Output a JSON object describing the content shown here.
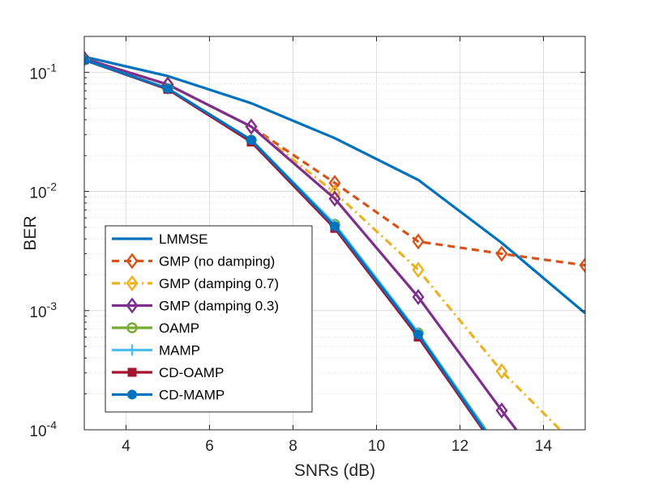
{
  "chart_data": {
    "type": "line",
    "title": "",
    "xlabel": "SNRs (dB)",
    "ylabel": "BER",
    "xlim": [
      3,
      15
    ],
    "ylim": [
      0.0001,
      0.2
    ],
    "yscale": "log",
    "grid": true,
    "legend_position": "bottom-left",
    "x_ticks": [
      4,
      6,
      8,
      10,
      12,
      14
    ],
    "y_ticks": [
      {
        "value": 0.0001,
        "base": "10",
        "exp": "-4"
      },
      {
        "value": 0.001,
        "base": "10",
        "exp": "-3"
      },
      {
        "value": 0.01,
        "base": "10",
        "exp": "-2"
      },
      {
        "value": 0.1,
        "base": "10",
        "exp": "-1"
      }
    ],
    "series": [
      {
        "name": "LMMSE",
        "color": "#0072BD",
        "dash": "solid",
        "marker": "none",
        "x": [
          3,
          5,
          7,
          9,
          11,
          13,
          15
        ],
        "y": [
          0.135,
          0.093,
          0.055,
          0.028,
          0.0125,
          0.0037,
          0.00095
        ]
      },
      {
        "name": "GMP (no damping)",
        "color": "#D95319",
        "dash": "dashed",
        "marker": "diamond",
        "x": [
          3,
          5,
          7,
          9,
          11,
          13,
          15
        ],
        "y": [
          0.13,
          0.079,
          0.035,
          0.0118,
          0.0038,
          0.003,
          0.0024
        ]
      },
      {
        "name": "GMP (damping 0.7)",
        "color": "#EDB120",
        "dash": "dashdot",
        "marker": "diamond",
        "x": [
          3,
          5,
          7,
          9,
          11,
          13,
          14.4
        ],
        "y": [
          0.13,
          0.079,
          0.035,
          0.0098,
          0.0022,
          0.00031,
          0.0001
        ]
      },
      {
        "name": "GMP (damping 0.3)",
        "color": "#7E2F8E",
        "dash": "solid",
        "marker": "diamond",
        "x": [
          3,
          5,
          7,
          9,
          11,
          13,
          13.35
        ],
        "y": [
          0.13,
          0.079,
          0.035,
          0.0087,
          0.0013,
          0.000145,
          0.0001
        ]
      },
      {
        "name": "OAMP",
        "color": "#77AC30",
        "dash": "solid",
        "marker": "circle",
        "x": [
          3,
          5,
          7,
          9,
          11,
          12.62
        ],
        "y": [
          0.127,
          0.073,
          0.027,
          0.0053,
          0.00065,
          0.0001
        ]
      },
      {
        "name": "MAMP",
        "color": "#4DBEEE",
        "dash": "solid",
        "marker": "plus",
        "x": [
          3,
          5,
          7,
          9,
          11,
          12.6
        ],
        "y": [
          0.127,
          0.073,
          0.027,
          0.0053,
          0.00065,
          0.0001
        ]
      },
      {
        "name": "CD-OAMP",
        "color": "#A2142F",
        "dash": "solid",
        "marker": "square",
        "x": [
          3,
          5,
          7,
          9,
          11,
          12.55
        ],
        "y": [
          0.127,
          0.072,
          0.026,
          0.0049,
          0.0006,
          0.0001
        ]
      },
      {
        "name": "CD-MAMP",
        "color": "#0072BD",
        "dash": "solid",
        "marker": "circle-filled",
        "x": [
          3,
          5,
          7,
          9,
          11,
          12.58
        ],
        "y": [
          0.127,
          0.073,
          0.027,
          0.0051,
          0.00063,
          0.0001
        ]
      }
    ]
  }
}
